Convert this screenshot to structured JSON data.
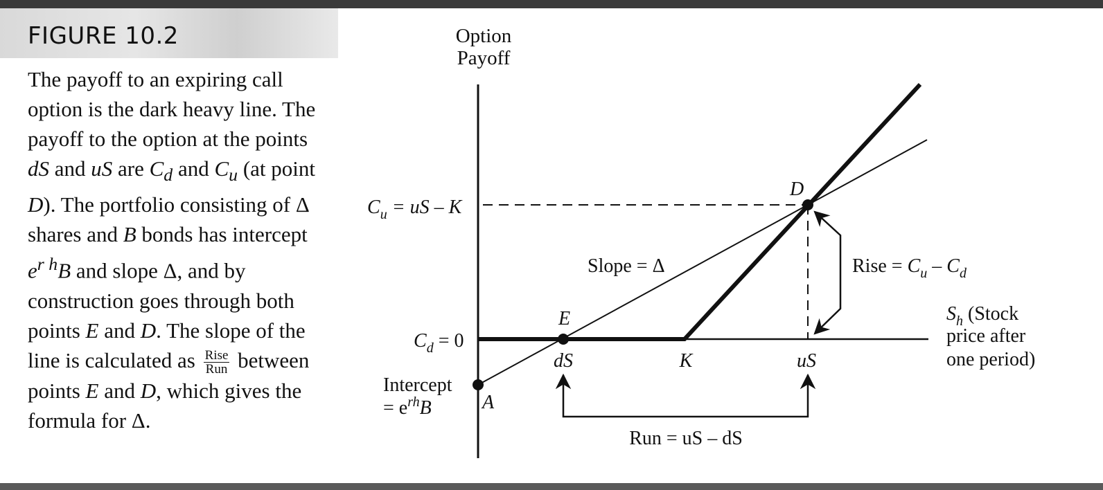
{
  "figure": {
    "label": "FIGURE 10.2"
  },
  "caption": {
    "part1": "The payoff to an expiring call option is the dark heavy line. The payoff to the option at the points ",
    "dS": "dS",
    "and1": " and ",
    "uS": "uS",
    "are": " are ",
    "Cd": "C",
    "Cd_sub": "d",
    "and2": " and ",
    "Cu": "C",
    "Cu_sub": "u",
    "at_point": " (at point ",
    "D1": "D",
    "part2": "). The portfolio consisting of Δ shares and ",
    "B1": "B",
    "part3": " bonds has intercept ",
    "e": "e",
    "rh": "r h",
    "B2": "B",
    "part4": " and slope Δ, and by construction goes through both points ",
    "E": "E",
    "and3": " and ",
    "D2": "D",
    "part5": ". The slope of the line is calculated as ",
    "frac_num": "Rise",
    "frac_den": "Run",
    "part6": " between points ",
    "E2": "E",
    "and4": " and ",
    "D3": "D",
    "part7": ", which gives the formula for Δ."
  },
  "diagram": {
    "y_axis_title_line1": "Option",
    "y_axis_title_line2": "Payoff",
    "cu_label": {
      "C": "C",
      "sub": "u",
      "rest": " = uS – K"
    },
    "cd_label": {
      "C": "C",
      "sub": "d",
      "rest": " = 0"
    },
    "point_D": "D",
    "point_E": "E",
    "point_A": "A",
    "slope_label": "Slope = Δ",
    "rise_label": {
      "prefix": "Rise = ",
      "C1": "C",
      "s1": "u",
      "mid": " – ",
      "C2": "C",
      "s2": "d"
    },
    "x_axis_label": {
      "S": "S",
      "sub": "h",
      "line1_rest": " (Stock",
      "line2": "price after",
      "line3": "one period)"
    },
    "tick_dS": "dS",
    "tick_K": "K",
    "tick_uS": "uS",
    "intercept_line1": "Intercept",
    "intercept_line2": {
      "prefix": "= e",
      "sup": "rh",
      "suffix": "B"
    },
    "run_label": "Run = uS – dS"
  },
  "colors": {
    "ink": "#111111",
    "banner": "#dddddd",
    "rule": "#3a3a3a"
  }
}
